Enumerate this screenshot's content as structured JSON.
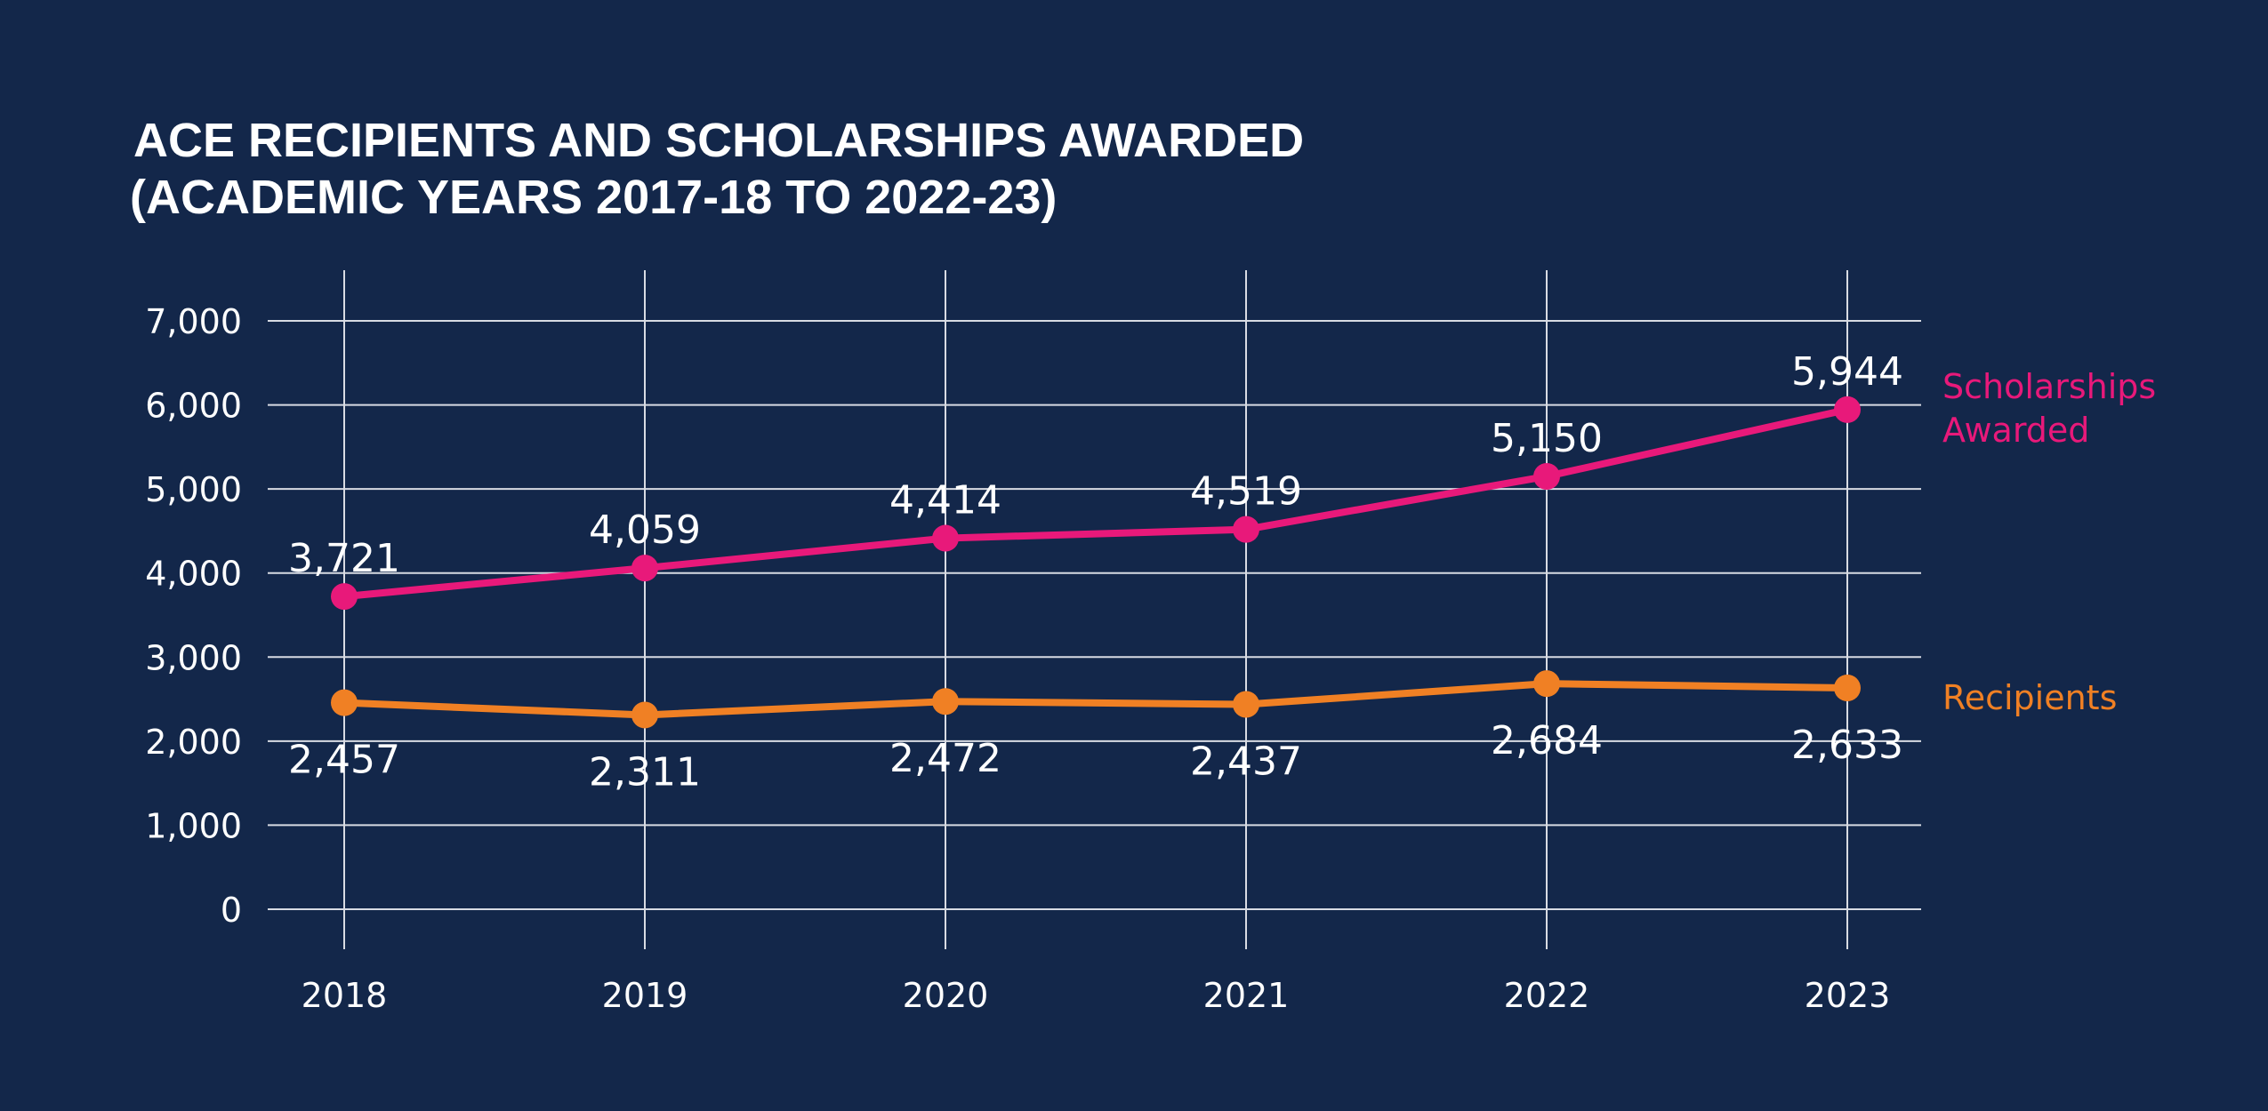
{
  "chart_data": {
    "type": "line",
    "title_lines": [
      "ACE RECIPIENTS AND SCHOLARSHIPS AWARDED",
      "(ACADEMIC YEARS 2017-18 TO 2022-23)"
    ],
    "xlabel": "",
    "ylabel": "",
    "categories": [
      "2018",
      "2019",
      "2020",
      "2021",
      "2022",
      "2023"
    ],
    "ylim": [
      0,
      7000
    ],
    "yticks": [
      0,
      1000,
      2000,
      3000,
      4000,
      5000,
      6000,
      7000
    ],
    "ytick_labels": [
      "0",
      "1,000",
      "2,000",
      "3,000",
      "4,000",
      "5,000",
      "6,000",
      "7,000"
    ],
    "grid": true,
    "legend_placement": "right, inline labels",
    "series": [
      {
        "name_lines": [
          "Scholarships",
          "Awarded"
        ],
        "color": "#e8197a",
        "values": [
          3721,
          4059,
          4414,
          4519,
          5150,
          5944
        ],
        "labels": [
          "3,721",
          "4,059",
          "4,414",
          "4,519",
          "5,150",
          "5,944"
        ],
        "label_position": "above"
      },
      {
        "name_lines": [
          "Recipients"
        ],
        "color": "#f08024",
        "values": [
          2457,
          2311,
          2472,
          2437,
          2684,
          2633
        ],
        "labels": [
          "2,457",
          "2,311",
          "2,472",
          "2,437",
          "2,684",
          "2,633"
        ],
        "label_position": "below"
      }
    ],
    "background": "#13274a",
    "grid_color": "#d8dbe3"
  }
}
